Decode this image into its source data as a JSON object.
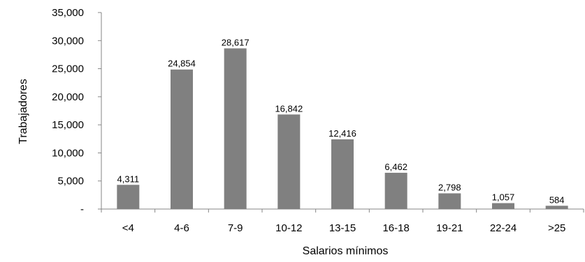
{
  "chart_data": {
    "type": "bar",
    "xlabel": "Salarios mínimos",
    "ylabel": "Trabajadores",
    "categories": [
      "<4",
      "4-6",
      "7-9",
      "10-12",
      "13-15",
      "16-18",
      "19-21",
      "22-24",
      ">25"
    ],
    "values": [
      4311,
      24854,
      28617,
      16842,
      12416,
      6462,
      2798,
      1057,
      584
    ],
    "value_labels": [
      "4,311",
      "24,854",
      "28,617",
      "16,842",
      "12,416",
      "6,462",
      "2,798",
      "1,057",
      "584"
    ],
    "ylim": [
      0,
      35000
    ],
    "yticks": [
      0,
      5000,
      10000,
      15000,
      20000,
      25000,
      30000,
      35000
    ],
    "ytick_labels": [
      "-",
      "5,000",
      "10,000",
      "15,000",
      "20,000",
      "25,000",
      "30,000",
      "35,000"
    ],
    "grid": false,
    "legend": "none",
    "bar_color": "#808080",
    "axis_color": "#868686"
  }
}
